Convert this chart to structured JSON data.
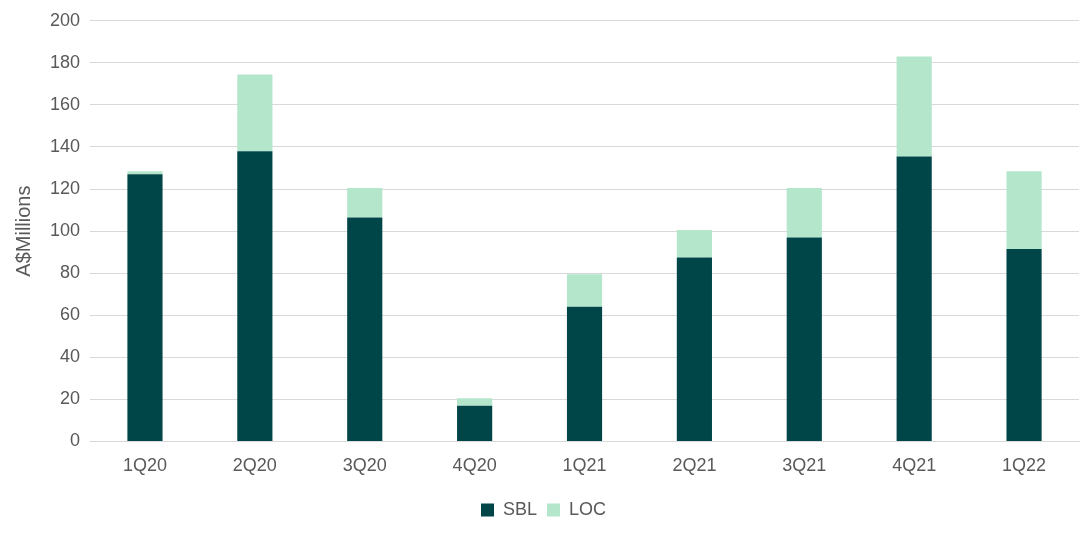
{
  "chart_data": {
    "type": "bar",
    "stacked": true,
    "categories": [
      "1Q20",
      "2Q20",
      "3Q20",
      "4Q20",
      "1Q21",
      "2Q21",
      "3Q21",
      "4Q21",
      "1Q22"
    ],
    "series": [
      {
        "name": "SBL",
        "color": "#004548",
        "values": [
          127,
          138,
          106.5,
          17,
          64,
          87.5,
          97,
          135.5,
          91.5
        ]
      },
      {
        "name": "LOC",
        "color": "#b3e6cb",
        "values": [
          1.5,
          36.5,
          14,
          3.5,
          15.5,
          13,
          23.5,
          47.5,
          37
        ]
      }
    ],
    "ylabel": "A$Millions",
    "ylim": [
      0,
      200
    ],
    "yticks": [
      0,
      20,
      40,
      60,
      80,
      100,
      120,
      140,
      160,
      180,
      200
    ],
    "grid": "y",
    "legend": "bottom"
  }
}
